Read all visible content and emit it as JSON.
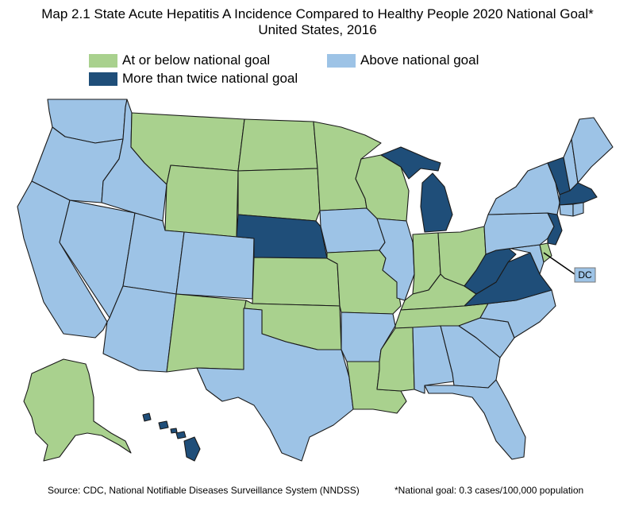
{
  "title_line1": "Map 2.1 State Acute Hepatitis A Incidence Compared to Healthy People 2020 National Goal*",
  "title_line2": "United States, 2016",
  "legend": {
    "green_label": "At or below national goal",
    "light_label": "Above national goal",
    "dark_label": "More than twice national goal"
  },
  "colors": {
    "green": "#a9d18e",
    "light": "#9dc3e6",
    "dark": "#1f4e79"
  },
  "dc_label": "DC",
  "footer": {
    "source": "Source: CDC, National Notifiable Diseases Surveillance System (NNDSS)",
    "note": "*National goal: 0.3 cases/100,000 population"
  },
  "categories": {
    "WA": "light",
    "OR": "light",
    "CA": "light",
    "NV": "light",
    "ID": "light",
    "MT": "green",
    "WY": "green",
    "UT": "light",
    "AZ": "light",
    "CO": "light",
    "NM": "green",
    "ND": "green",
    "SD": "green",
    "NE": "dark",
    "KS": "green",
    "OK": "green",
    "TX": "light",
    "MN": "green",
    "IA": "light",
    "MO": "green",
    "AR": "light",
    "LA": "green",
    "WI": "green",
    "IL": "light",
    "MI": "dark",
    "IN": "green",
    "OH": "green",
    "KY": "green",
    "TN": "green",
    "MS": "green",
    "AL": "light",
    "GA": "light",
    "FL": "light",
    "SC": "light",
    "NC": "light",
    "VA": "dark",
    "WV": "dark",
    "MD": "light",
    "DE": "green",
    "NJ": "dark",
    "PA": "light",
    "NY": "light",
    "VT": "dark",
    "NH": "light",
    "ME": "light",
    "MA": "dark",
    "CT": "light",
    "RI": "light",
    "AK": "green",
    "HI": "dark",
    "DC": "light"
  }
}
